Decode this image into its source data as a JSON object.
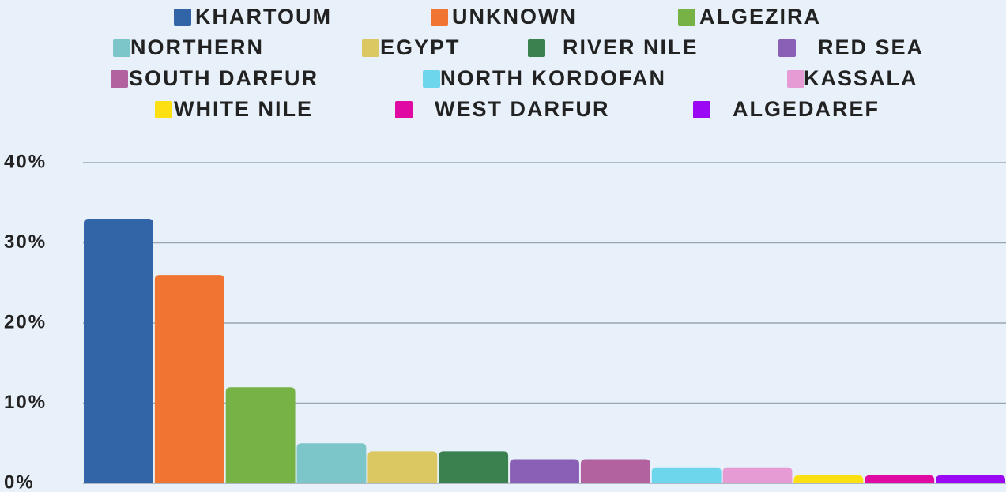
{
  "chart_data": {
    "type": "bar",
    "categories": [
      "KHARTOUM",
      "UNKNOWN",
      "ALGEZIRA",
      "NORTHERN",
      "EGYPT",
      "RIVER NILE",
      "RED SEA",
      "SOUTH DARFUR",
      "NORTH KORDOFAN",
      "KASSALA",
      "WHITE NILE",
      "WEST DARFUR",
      "ALGEDAREF"
    ],
    "values": [
      33,
      26,
      12,
      5,
      4,
      4,
      3,
      3,
      2,
      2,
      1,
      1,
      1
    ],
    "colors": [
      "#3165a8",
      "#f07533",
      "#76b245",
      "#7cc5c8",
      "#dcc862",
      "#3b8150",
      "#8a5fb6",
      "#b2629e",
      "#6dd6ec",
      "#e69bd4",
      "#fde012",
      "#e009a2",
      "#9a08f4"
    ],
    "ylim": [
      0,
      40
    ],
    "yticks": [
      {
        "value": 0,
        "label": "0%"
      },
      {
        "value": 10,
        "label": "10%"
      },
      {
        "value": 20,
        "label": "20%"
      },
      {
        "value": 30,
        "label": "30%"
      },
      {
        "value": 40,
        "label": "40%"
      }
    ],
    "grid": true
  }
}
